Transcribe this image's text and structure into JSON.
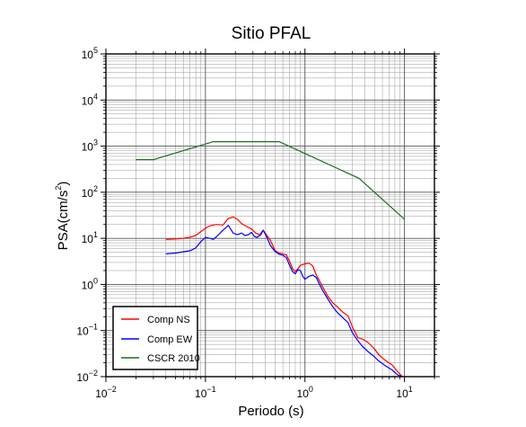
{
  "chart_data": {
    "type": "line",
    "title": "Sitio PFAL",
    "xlabel": "Periodo (s)",
    "ylabel": "PSA(cm/s2)",
    "ylabel_base": "PSA(cm/s",
    "ylabel_sup": "2",
    "ylabel_close": ")",
    "x_scale": "log",
    "y_scale": "log",
    "xlim": [
      0.01,
      20
    ],
    "ylim": [
      0.01,
      100000
    ],
    "grid": true,
    "legend_position": "bottom-left",
    "x_ticks": [
      {
        "value": 0.01,
        "base": "10",
        "exp": "−2"
      },
      {
        "value": 0.1,
        "base": "10",
        "exp": "−1"
      },
      {
        "value": 1,
        "base": "10",
        "exp": "0"
      },
      {
        "value": 10,
        "base": "10",
        "exp": "1"
      }
    ],
    "y_ticks": [
      {
        "value": 0.01,
        "base": "10",
        "exp": "−2"
      },
      {
        "value": 0.1,
        "base": "10",
        "exp": "−1"
      },
      {
        "value": 1,
        "base": "10",
        "exp": "0"
      },
      {
        "value": 10,
        "base": "10",
        "exp": "1"
      },
      {
        "value": 100,
        "base": "10",
        "exp": "2"
      },
      {
        "value": 1000,
        "base": "10",
        "exp": "3"
      },
      {
        "value": 10000,
        "base": "10",
        "exp": "4"
      },
      {
        "value": 100000,
        "base": "10",
        "exp": "5"
      }
    ],
    "series": [
      {
        "name": "Comp NS",
        "color": "#ff0000",
        "points": [
          [
            0.04,
            9.5
          ],
          [
            0.05,
            9.7
          ],
          [
            0.06,
            10
          ],
          [
            0.07,
            10.6
          ],
          [
            0.08,
            11.5
          ],
          [
            0.09,
            14
          ],
          [
            0.1,
            16.5
          ],
          [
            0.11,
            18.5
          ],
          [
            0.12,
            19.5
          ],
          [
            0.13,
            20
          ],
          [
            0.15,
            19.5
          ],
          [
            0.17,
            27
          ],
          [
            0.19,
            29
          ],
          [
            0.21,
            26
          ],
          [
            0.23,
            21
          ],
          [
            0.26,
            18
          ],
          [
            0.29,
            16
          ],
          [
            0.32,
            13
          ],
          [
            0.35,
            12
          ],
          [
            0.38,
            15
          ],
          [
            0.41,
            12
          ],
          [
            0.45,
            9
          ],
          [
            0.5,
            5.5
          ],
          [
            0.55,
            4.8
          ],
          [
            0.6,
            4.6
          ],
          [
            0.65,
            4.4
          ],
          [
            0.7,
            3.2
          ],
          [
            0.75,
            2.2
          ],
          [
            0.8,
            1.9
          ],
          [
            0.85,
            2.2
          ],
          [
            0.9,
            2.6
          ],
          [
            1.0,
            2.8
          ],
          [
            1.1,
            2.9
          ],
          [
            1.2,
            2.5
          ],
          [
            1.3,
            1.6
          ],
          [
            1.4,
            1.2
          ],
          [
            1.5,
            0.9
          ],
          [
            1.7,
            0.55
          ],
          [
            1.9,
            0.4
          ],
          [
            2.1,
            0.33
          ],
          [
            2.4,
            0.25
          ],
          [
            2.7,
            0.21
          ],
          [
            3.0,
            0.12
          ],
          [
            3.4,
            0.07
          ],
          [
            3.8,
            0.065
          ],
          [
            4.3,
            0.055
          ],
          [
            5.0,
            0.04
          ],
          [
            5.5,
            0.03
          ],
          [
            6.5,
            0.022
          ],
          [
            7.5,
            0.018
          ],
          [
            8.5,
            0.013
          ],
          [
            9.5,
            0.01
          ]
        ]
      },
      {
        "name": "Comp EW",
        "color": "#0000ff",
        "points": [
          [
            0.04,
            4.6
          ],
          [
            0.05,
            4.8
          ],
          [
            0.06,
            5.1
          ],
          [
            0.07,
            5.4
          ],
          [
            0.08,
            6.2
          ],
          [
            0.09,
            8.5
          ],
          [
            0.1,
            10.5
          ],
          [
            0.11,
            10
          ],
          [
            0.12,
            9.5
          ],
          [
            0.13,
            11
          ],
          [
            0.15,
            15
          ],
          [
            0.17,
            19
          ],
          [
            0.19,
            13
          ],
          [
            0.21,
            12
          ],
          [
            0.23,
            13
          ],
          [
            0.25,
            11.5
          ],
          [
            0.27,
            12
          ],
          [
            0.29,
            13.5
          ],
          [
            0.31,
            11
          ],
          [
            0.33,
            10.5
          ],
          [
            0.36,
            12
          ],
          [
            0.38,
            15
          ],
          [
            0.41,
            11
          ],
          [
            0.45,
            7
          ],
          [
            0.5,
            5.2
          ],
          [
            0.55,
            4.5
          ],
          [
            0.6,
            4.3
          ],
          [
            0.65,
            3.8
          ],
          [
            0.7,
            2.6
          ],
          [
            0.75,
            1.9
          ],
          [
            0.8,
            1.7
          ],
          [
            0.85,
            2.1
          ],
          [
            0.9,
            2.0
          ],
          [
            0.95,
            1.5
          ],
          [
            1.0,
            1.3
          ],
          [
            1.1,
            1.5
          ],
          [
            1.2,
            1.6
          ],
          [
            1.3,
            1.4
          ],
          [
            1.4,
            1.0
          ],
          [
            1.5,
            0.75
          ],
          [
            1.7,
            0.48
          ],
          [
            1.9,
            0.33
          ],
          [
            2.1,
            0.25
          ],
          [
            2.4,
            0.19
          ],
          [
            2.7,
            0.15
          ],
          [
            3.0,
            0.09
          ],
          [
            3.4,
            0.06
          ],
          [
            3.8,
            0.045
          ],
          [
            4.3,
            0.035
          ],
          [
            5.0,
            0.027
          ],
          [
            5.5,
            0.022
          ],
          [
            6.5,
            0.017
          ],
          [
            7.5,
            0.014
          ],
          [
            8.5,
            0.011
          ],
          [
            9.5,
            0.01
          ]
        ]
      },
      {
        "name": "CSCR 2010",
        "color": "#1a6e1a",
        "points": [
          [
            0.02,
            510
          ],
          [
            0.03,
            510
          ],
          [
            0.12,
            1250
          ],
          [
            0.55,
            1250
          ],
          [
            3.5,
            200
          ],
          [
            10,
            26
          ]
        ]
      }
    ]
  }
}
